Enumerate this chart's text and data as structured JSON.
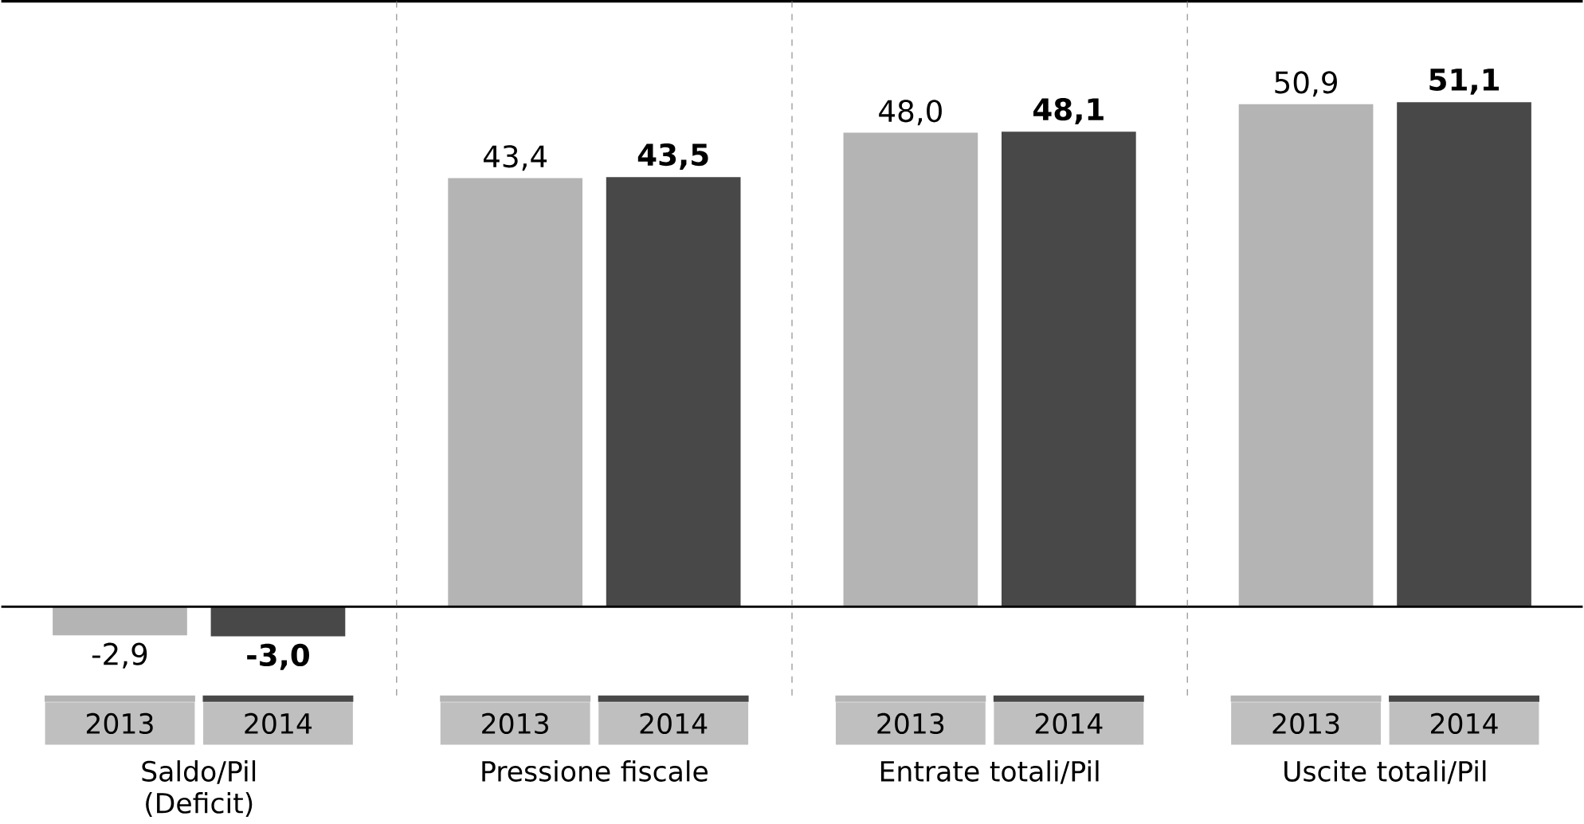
{
  "chart_data": {
    "type": "bar",
    "categories": [
      "Saldo/Pil (Deficit)",
      "Pressione fiscale",
      "Entrate totali/Pil",
      "Uscite totali/Pil"
    ],
    "series": [
      {
        "name": "2013",
        "color": "#b4b4b4",
        "values": [
          -2.9,
          43.4,
          48.0,
          50.9
        ],
        "value_labels": [
          "-2,9",
          "43,4",
          "48,0",
          "50,9"
        ]
      },
      {
        "name": "2014",
        "color": "#484848",
        "values": [
          -3.0,
          43.5,
          48.1,
          51.1
        ],
        "value_labels": [
          "-3,0",
          "43,5",
          "48,1",
          "51,1"
        ]
      }
    ]
  }
}
